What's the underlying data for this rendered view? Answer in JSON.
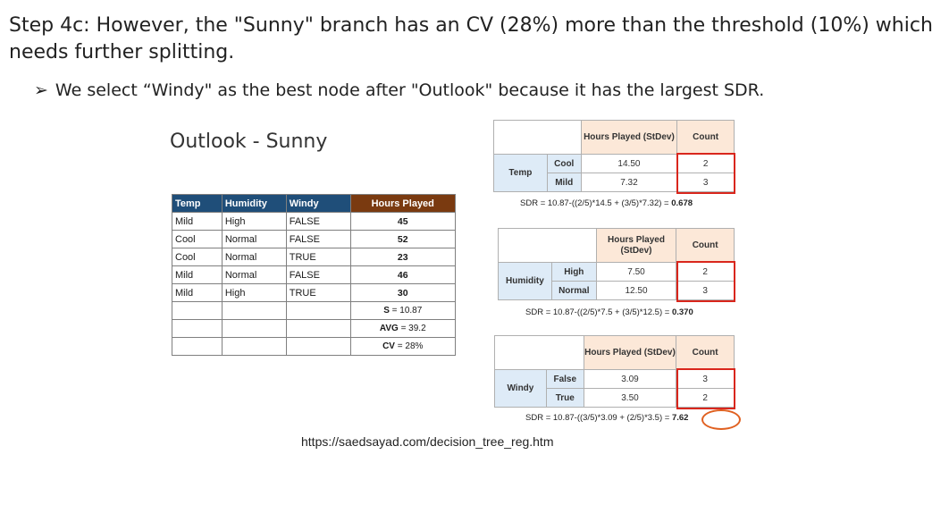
{
  "heading": "Step 4c: However, the \"Sunny\" branch has an CV (28%) more than the threshold (10%) which needs further splitting.",
  "bullet": {
    "marker": "➢",
    "text": "We select “Windy\" as the best node after \"Outlook\" because it has the largest SDR."
  },
  "subset_title": "Outlook - Sunny",
  "data_table": {
    "headers": [
      "Temp",
      "Humidity",
      "Windy",
      "Hours Played"
    ],
    "rows": [
      [
        "Mild",
        "High",
        "FALSE",
        "45"
      ],
      [
        "Cool",
        "Normal",
        "FALSE",
        "52"
      ],
      [
        "Cool",
        "Normal",
        "TRUE",
        "23"
      ],
      [
        "Mild",
        "Normal",
        "FALSE",
        "46"
      ],
      [
        "Mild",
        "High",
        "TRUE",
        "30"
      ]
    ],
    "stats": [
      {
        "label": "S",
        "value": "= 10.87"
      },
      {
        "label": "AVG",
        "value": "= 39.2"
      },
      {
        "label": "CV",
        "value": "= 28%"
      }
    ]
  },
  "sdr_tables": [
    {
      "attribute": "Temp",
      "col_header": "Hours Played (StDev)",
      "count_header": "Count",
      "rows": [
        {
          "value": "Cool",
          "stdev": "14.50",
          "count": "2"
        },
        {
          "value": "Mild",
          "stdev": "7.32",
          "count": "3"
        }
      ],
      "formula": "SDR = 10.87-((2/5)*14.5 + (3/5)*7.32) = ",
      "result": "0.678"
    },
    {
      "attribute": "Humidity",
      "col_header": "Hours Played (StDev)",
      "count_header": "Count",
      "rows": [
        {
          "value": "High",
          "stdev": "7.50",
          "count": "2"
        },
        {
          "value": "Normal",
          "stdev": "12.50",
          "count": "3"
        }
      ],
      "formula": "SDR = 10.87-((2/5)*7.5 + (3/5)*12.5) = ",
      "result": "0.370"
    },
    {
      "attribute": "Windy",
      "col_header": "Hours Played (StDev)",
      "count_header": "Count",
      "rows": [
        {
          "value": "False",
          "stdev": "3.09",
          "count": "3"
        },
        {
          "value": "True",
          "stdev": "3.50",
          "count": "2"
        }
      ],
      "formula": "SDR = 10.87-((3/5)*3.09 + (2/5)*3.5) = ",
      "result": "7.62"
    }
  ],
  "source_url": "https://saedsayad.com/decision_tree_reg.htm",
  "colors": {
    "table_header": "#1f4e79",
    "hours_header": "#7a3a10",
    "highlight_box": "#d9261c",
    "circle": "#e06020"
  }
}
